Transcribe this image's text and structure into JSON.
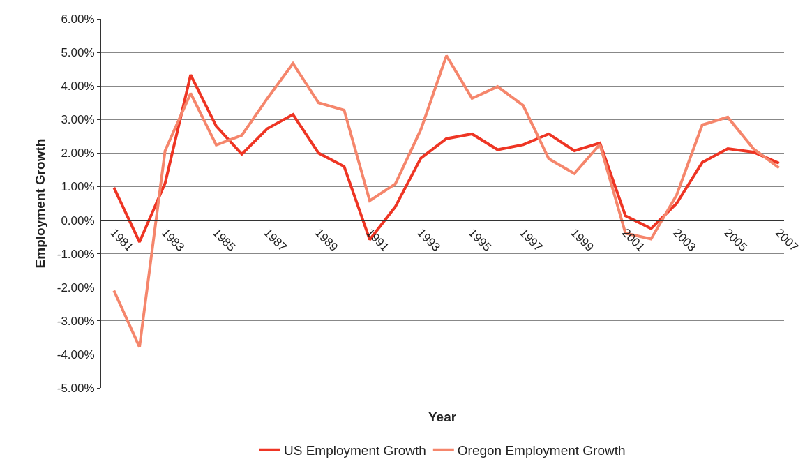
{
  "chart_data": {
    "type": "line",
    "xlabel": "Year",
    "ylabel": "Employment Growth",
    "categories": [
      "1981",
      null,
      "1983",
      null,
      "1985",
      null,
      "1987",
      null,
      "1989",
      null,
      "1991",
      null,
      "1993",
      null,
      "1995",
      null,
      "1997",
      null,
      "1999",
      null,
      "2001",
      null,
      "2003",
      null,
      "2005",
      null,
      "2007"
    ],
    "series": [
      {
        "name": "US Employment Growth",
        "color": "#ee3524",
        "values": [
          0.97,
          -0.65,
          1.1,
          4.33,
          2.8,
          1.97,
          2.73,
          3.15,
          2.0,
          1.6,
          -0.58,
          0.4,
          1.85,
          2.43,
          2.57,
          2.1,
          2.25,
          2.57,
          2.07,
          2.3,
          0.13,
          -0.25,
          0.5,
          1.72,
          2.13,
          2.03,
          1.7
        ]
      },
      {
        "name": "Oregon Employment Growth",
        "color": "#f5866c",
        "values": [
          -2.1,
          -3.78,
          2.07,
          3.78,
          2.24,
          2.53,
          3.63,
          4.67,
          3.5,
          3.28,
          0.58,
          1.08,
          2.7,
          4.9,
          3.63,
          3.98,
          3.42,
          1.83,
          1.39,
          2.26,
          -0.39,
          -0.56,
          0.75,
          2.84,
          3.07,
          2.13,
          1.56
        ]
      }
    ],
    "ylim": [
      -5,
      6
    ],
    "yticks": [
      {
        "value": -5,
        "label": "-5.00%"
      },
      {
        "value": -4,
        "label": "-4.00%"
      },
      {
        "value": -3,
        "label": "-3.00%"
      },
      {
        "value": -2,
        "label": "-2.00%"
      },
      {
        "value": -1,
        "label": "-1.00%"
      },
      {
        "value": 0,
        "label": "0.00%"
      },
      {
        "value": 1,
        "label": "1.00%"
      },
      {
        "value": 2,
        "label": "2.00%"
      },
      {
        "value": 3,
        "label": "3.00%"
      },
      {
        "value": 4,
        "label": "4.00%"
      },
      {
        "value": 5,
        "label": "5.00%"
      },
      {
        "value": 6,
        "label": "6.00%"
      }
    ],
    "grid": "y",
    "legend": "bottom",
    "marker": "none",
    "line_style": "solid"
  }
}
